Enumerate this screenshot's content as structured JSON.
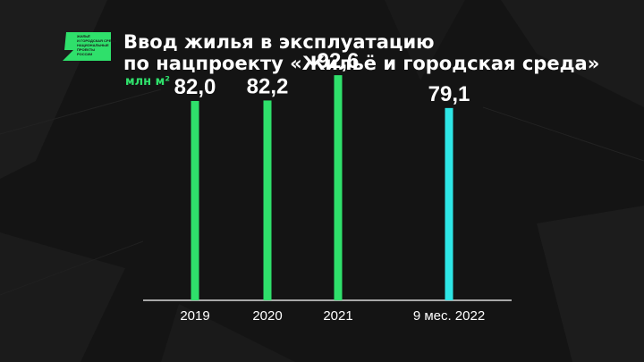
{
  "logo": {
    "lines": [
      "ЖИЛЬЁ",
      "И ГОРОДСКАЯ СРЕДА",
      "НАЦИОНАЛЬНЫЕ",
      "ПРОЕКТЫ",
      "РОССИИ"
    ]
  },
  "header": {
    "title_line1": "Ввод жилья в эксплуатацию",
    "title_line2": "по нацпроекту «Жильё и городская среда»",
    "unit": "млн м²"
  },
  "colors": {
    "background": "#141414",
    "bar_actual": "#2fe06b",
    "bar_partial": "#2ee6e6",
    "text": "#ffffff"
  },
  "chart_data": {
    "type": "bar",
    "categories": [
      "2019",
      "2020",
      "2021",
      "9 мес. 2022"
    ],
    "values": [
      82.0,
      82.2,
      92.6,
      79.1
    ],
    "labels": [
      "82,0",
      "82,2",
      "92,6",
      "79,1"
    ],
    "bar_colors": [
      "#2fe06b",
      "#2fe06b",
      "#2fe06b",
      "#2ee6e6"
    ],
    "ylabel": "млн м²",
    "ylim": [
      0,
      100
    ],
    "grid": false
  }
}
